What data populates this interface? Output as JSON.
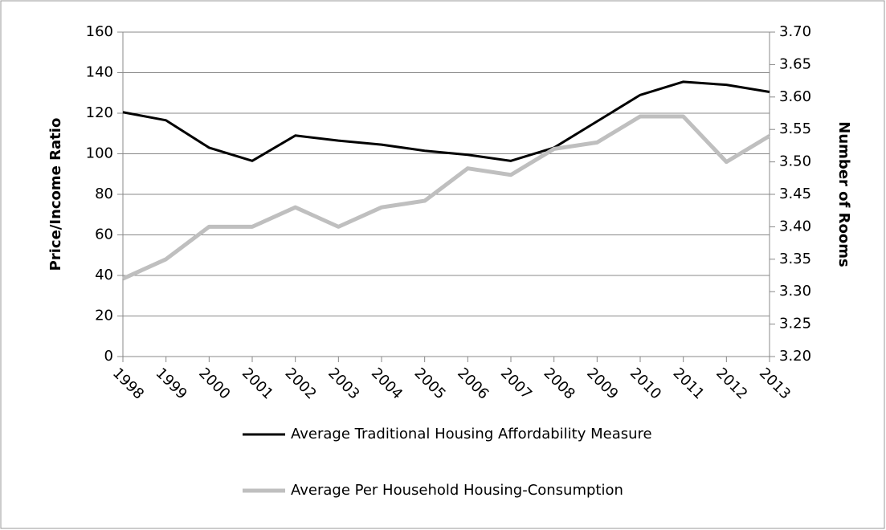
{
  "chart_data": {
    "type": "line",
    "y_label": "Price/Income Ratio",
    "y2_label": "Number of Rooms",
    "categories": [
      "1998",
      "1999",
      "2000",
      "2001",
      "2002",
      "2003",
      "2004",
      "2005",
      "2006",
      "2007",
      "2008",
      "2009",
      "2010",
      "2011",
      "2012",
      "2013"
    ],
    "series": [
      {
        "name": "Average Traditional Housing Affordability Measure",
        "color": "#000000",
        "values": [
          120.5,
          116.5,
          103,
          96.5,
          109,
          106.5,
          104.5,
          101.5,
          99.5,
          96.5,
          103,
          116,
          129,
          135.5,
          134,
          130.5
        ]
      },
      {
        "name": "Average Per Household Housing-Consumption",
        "color": "#bfbfbf",
        "axis": "y2",
        "values": [
          3.32,
          3.35,
          3.4,
          3.4,
          3.43,
          3.4,
          3.43,
          3.44,
          3.49,
          3.48,
          3.52,
          3.53,
          3.57,
          3.57,
          3.5,
          3.54
        ]
      }
    ],
    "ylim": [
      0,
      160
    ],
    "yticks": [
      0,
      20,
      40,
      60,
      80,
      100,
      120,
      140,
      160
    ],
    "y2lim": [
      3.2,
      3.7
    ],
    "y2ticks": [
      {
        "value": 3.2,
        "label": "3.20"
      },
      {
        "value": 3.25,
        "label": "3.25"
      },
      {
        "value": 3.3,
        "label": "3.30"
      },
      {
        "value": 3.35,
        "label": "3.35"
      },
      {
        "value": 3.4,
        "label": "3.40"
      },
      {
        "value": 3.45,
        "label": "3.45"
      },
      {
        "value": 3.5,
        "label": "3.50"
      },
      {
        "value": 3.55,
        "label": "3.55"
      },
      {
        "value": 3.6,
        "label": "3.60"
      },
      {
        "value": 3.65,
        "label": "3.65"
      },
      {
        "value": 3.7,
        "label": "3.70"
      }
    ],
    "grid": true,
    "legend": "bottom"
  }
}
